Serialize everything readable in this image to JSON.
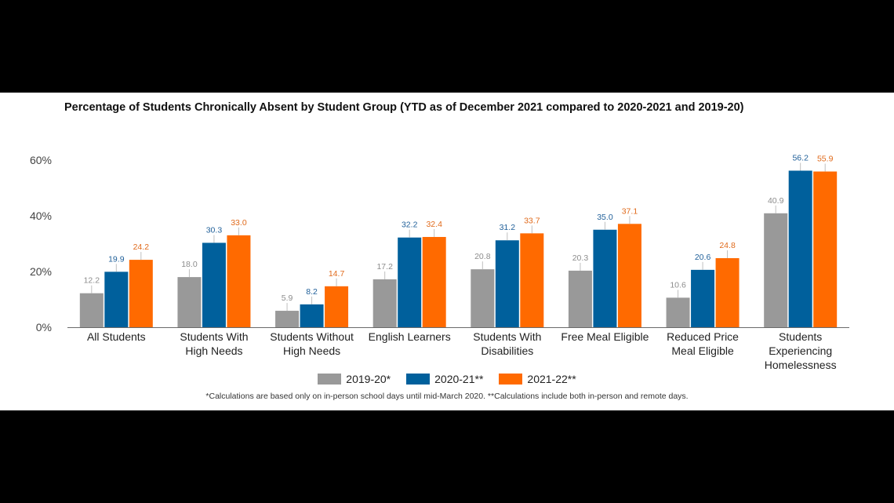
{
  "title": "Percentage of Students Chronically Absent by Student Group (YTD as of December 2021 compared to 2020-2021 and 2019-20)",
  "footnote": "*Calculations are based only on in-person school days until mid-March 2020. **Calculations include both in-person and remote days.",
  "chart_data": {
    "type": "bar",
    "title": "Percentage of Students Chronically Absent by Student Group (YTD as of December 2021 compared to 2020-2021 and 2019-20)",
    "categories": [
      [
        "All Students"
      ],
      [
        "Students With",
        "High Needs"
      ],
      [
        "Students Without",
        "High Needs"
      ],
      [
        "English Learners"
      ],
      [
        "Students With",
        "Disabilities"
      ],
      [
        "Free Meal Eligible"
      ],
      [
        "Reduced Price",
        "Meal Eligible"
      ],
      [
        "Students",
        "Experiencing",
        "Homelessness"
      ]
    ],
    "series": [
      {
        "name": "2019-20*",
        "color": "#999999",
        "label_color": "#8c8c8c",
        "values": [
          12.2,
          18.0,
          5.9,
          17.2,
          20.8,
          20.3,
          10.6,
          40.9
        ]
      },
      {
        "name": "2020-21**",
        "color": "#00609c",
        "label_color": "#1f5f99",
        "values": [
          19.9,
          30.3,
          8.2,
          32.2,
          31.2,
          35.0,
          20.6,
          56.2
        ]
      },
      {
        "name": "2021-22**",
        "color": "#ff6a00",
        "label_color": "#e06a1b",
        "values": [
          24.2,
          33.0,
          14.7,
          32.4,
          33.7,
          37.1,
          24.8,
          55.9
        ]
      }
    ],
    "y_ticks": [
      "0%",
      "20%",
      "40%",
      "60%"
    ],
    "y_tick_values": [
      0,
      20,
      40,
      60
    ],
    "ylim": [
      0,
      60
    ],
    "legend_position": "bottom",
    "grid": false
  }
}
